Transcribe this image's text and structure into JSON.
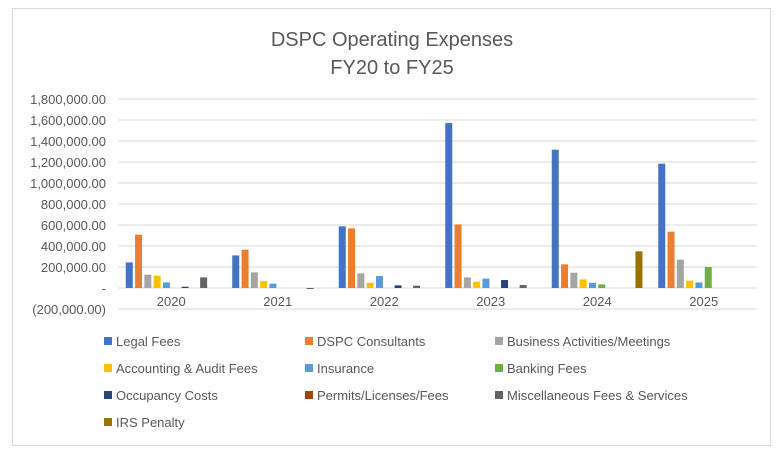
{
  "chart_data": {
    "type": "bar",
    "title_lines": [
      "DSPC Operating Expenses",
      "FY20 to FY25"
    ],
    "xlabel": "",
    "ylabel": "",
    "ylim": [
      -200000,
      1800000
    ],
    "ystep": 200000,
    "ytick_labels": [
      "(200,000.00)",
      "-",
      "200,000.00",
      "400,000.00",
      "600,000.00",
      "800,000.00",
      "1,000,000.00",
      "1,200,000.00",
      "1,400,000.00",
      "1,600,000.00",
      "1,800,000.00"
    ],
    "grid": true,
    "legend_position": "bottom",
    "categories": [
      "2020",
      "2021",
      "2022",
      "2023",
      "2024",
      "2025"
    ],
    "series": [
      {
        "name": "Legal Fees",
        "color": "#4472C4",
        "values": [
          244000,
          310000,
          587000,
          1571000,
          1317000,
          1184000
        ]
      },
      {
        "name": "DSPC Consultants",
        "color": "#ED7D31",
        "values": [
          508000,
          365000,
          568000,
          606000,
          225000,
          536000
        ]
      },
      {
        "name": "Business Activities/Meetings",
        "color": "#A5A5A5",
        "values": [
          127000,
          149000,
          139000,
          101000,
          146000,
          270000
        ]
      },
      {
        "name": "Accounting & Audit Fees",
        "color": "#FFC000",
        "values": [
          117000,
          67000,
          50000,
          60000,
          82000,
          70000
        ]
      },
      {
        "name": "Insurance",
        "color": "#5B9BD5",
        "values": [
          53000,
          41000,
          114000,
          89000,
          50000,
          53000
        ]
      },
      {
        "name": "Banking Fees",
        "color": "#70AD47",
        "values": [
          0,
          0,
          0,
          0,
          34000,
          200000
        ]
      },
      {
        "name": "Occupancy Costs",
        "color": "#264478",
        "values": [
          12000,
          0,
          25000,
          76000,
          0,
          0
        ]
      },
      {
        "name": "Permits/Licenses/Fees",
        "color": "#9E480E",
        "values": [
          0,
          0,
          0,
          0,
          0,
          0
        ]
      },
      {
        "name": "Miscellaneous Fees & Services",
        "color": "#636363",
        "values": [
          101000,
          -3000,
          22000,
          29000,
          0,
          0
        ]
      },
      {
        "name": "IRS Penalty",
        "color": "#997300",
        "values": [
          0,
          0,
          0,
          0,
          349000,
          0
        ]
      }
    ]
  }
}
